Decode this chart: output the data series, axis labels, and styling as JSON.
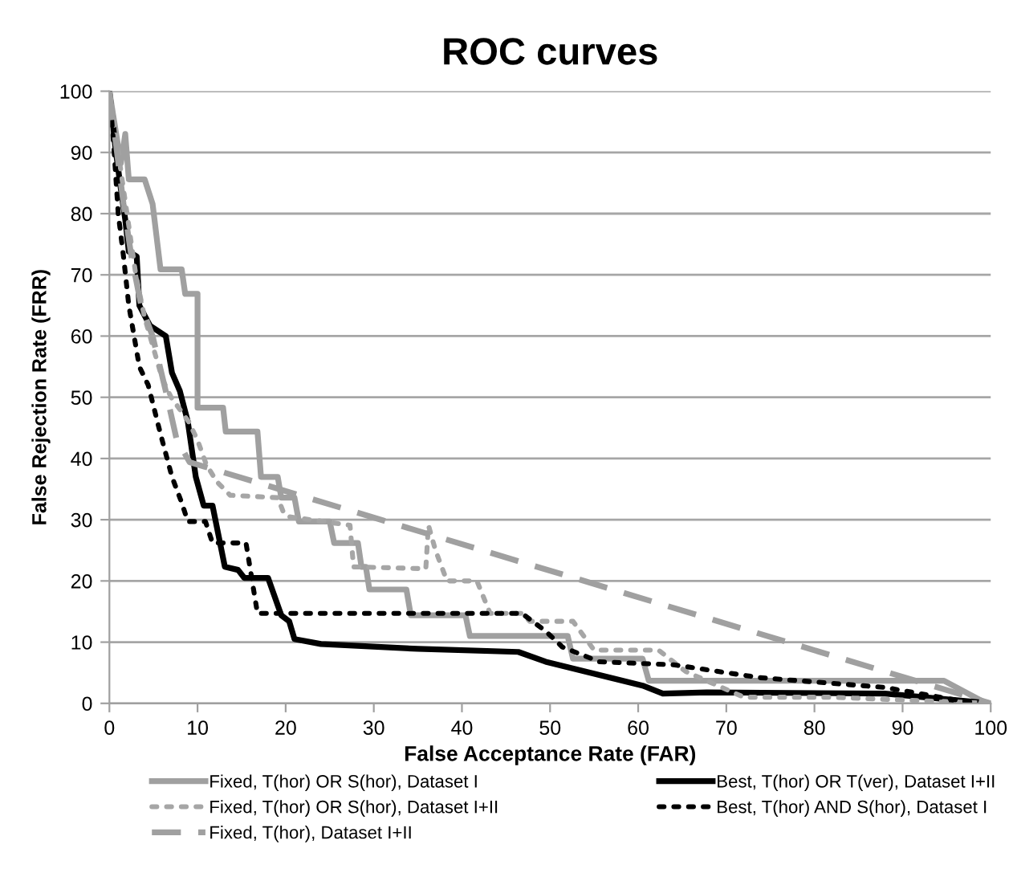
{
  "chart_data": {
    "type": "line",
    "title": "ROC curves",
    "xlabel": "False Acceptance Rate (FAR)",
    "ylabel": "False Rejection Rate (FRR)",
    "xlim": [
      0,
      100
    ],
    "ylim": [
      0,
      100
    ],
    "xticks": [
      0,
      10,
      20,
      30,
      40,
      50,
      60,
      70,
      80,
      90,
      100
    ],
    "yticks": [
      0,
      10,
      20,
      30,
      40,
      50,
      60,
      70,
      80,
      90,
      100
    ],
    "grid": "y",
    "legend": "bottom",
    "marker": "none",
    "series": [
      {
        "name": "Fixed, T(hor) OR S(hor), Dataset I",
        "color": "#a0a0a0",
        "line_style": "solid",
        "x": [
          0,
          1.3,
          1.8,
          2.2,
          4,
          4.9,
          5.8,
          8.2,
          8.6,
          10,
          10,
          12.9,
          13.2,
          16.8,
          17.2,
          19.1,
          19.5,
          21,
          21.5,
          25,
          25.5,
          28.2,
          28.6,
          29.1,
          29.5,
          33.7,
          34.2,
          40.4,
          40.9,
          52,
          52.6,
          60.5,
          61.2,
          94.7,
          99.5
        ],
        "values": [
          100,
          88.2,
          93,
          85.6,
          85.6,
          81.6,
          70.9,
          70.9,
          66.9,
          66.9,
          48.3,
          48.3,
          44.4,
          44.4,
          37,
          37,
          33.6,
          33.6,
          29.7,
          29.7,
          26.2,
          26.2,
          22.3,
          22.3,
          18.6,
          18.6,
          14.4,
          14.4,
          11,
          11,
          7.3,
          7.3,
          3.7,
          3.7,
          0
        ]
      },
      {
        "name": "Best, T(hor) OR T(ver), Dataset I+II",
        "color": "#000000",
        "line_style": "solid",
        "x": [
          0,
          0.7,
          1.3,
          1.8,
          2.2,
          3.1,
          3.4,
          4.6,
          6.4,
          7.1,
          8,
          8.9,
          9.8,
          10.7,
          11.7,
          13.1,
          14.6,
          15.3,
          18,
          19.5,
          20.4,
          21,
          24,
          35,
          46.4,
          49.5,
          60.5,
          62.8,
          67.8,
          88,
          100
        ],
        "values": [
          100,
          90.5,
          84,
          79,
          73.8,
          73,
          65,
          61.7,
          60,
          54,
          51,
          46,
          37,
          32.3,
          32.3,
          22.3,
          21.8,
          20.5,
          20.5,
          14.4,
          13.4,
          10.5,
          9.7,
          8.9,
          8.4,
          6.8,
          2.9,
          1.6,
          1.8,
          1.6,
          0
        ]
      },
      {
        "name": "Fixed, T(hor) OR S(hor), Dataset I+II",
        "color": "#a6a6a6",
        "line_style": "dotted",
        "x": [
          0,
          1,
          2,
          3,
          4,
          5,
          6,
          7,
          8,
          9,
          10,
          11,
          12.2,
          13.7,
          19.1,
          19.8,
          20.3,
          27.3,
          27.7,
          35.9,
          36.2,
          37,
          38.3,
          41.7,
          43.2,
          46.8,
          47.7,
          52.6,
          55,
          62.3,
          65.4,
          72,
          82,
          100
        ],
        "values": [
          100,
          90,
          80,
          70,
          63,
          58,
          53,
          50,
          48,
          46,
          43,
          39,
          36.2,
          34,
          33.6,
          31,
          30.5,
          29.1,
          22.3,
          22,
          29.1,
          25,
          20,
          20,
          14.7,
          14.7,
          13.4,
          13.4,
          8.7,
          8.7,
          5.2,
          1,
          1,
          0
        ]
      },
      {
        "name": "Best, T(hor) AND S(hor), Dataset I",
        "color": "#000000",
        "line_style": "dotted",
        "x": [
          0,
          0.5,
          1,
          1.6,
          2.2,
          2.8,
          3.4,
          4.4,
          5.8,
          7.1,
          8.2,
          8.9,
          10.9,
          11.7,
          15.5,
          16.8,
          46.8,
          49.5,
          51.4,
          55.6,
          64,
          73.8,
          88,
          97,
          100
        ],
        "values": [
          100,
          91,
          80,
          73,
          65,
          60,
          55,
          52,
          44,
          37,
          32.8,
          29.7,
          29.7,
          26.2,
          26.2,
          14.7,
          14.7,
          11.8,
          9.2,
          6.8,
          6.3,
          4.2,
          2.6,
          0.3,
          0
        ]
      },
      {
        "name": "Fixed, T(hor), Dataset I+II",
        "color": "#a0a0a0",
        "line_style": "dashed",
        "x": [
          0,
          0.6,
          1.6,
          2.5,
          3.6,
          4.9,
          6.4,
          7.6,
          9.1,
          100
        ],
        "values": [
          100,
          93,
          81.6,
          73,
          65,
          60,
          51,
          43.3,
          39.4,
          0
        ]
      }
    ]
  }
}
